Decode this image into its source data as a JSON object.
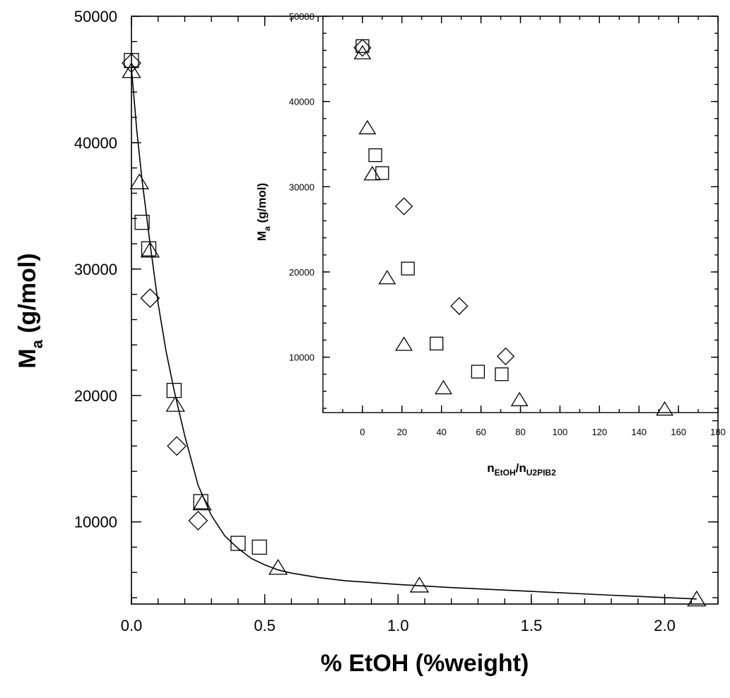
{
  "chart_data": [
    {
      "type": "scatter",
      "title": "",
      "xlabel": "% EtOH (%weight)",
      "ylabel": {
        "main": "M",
        "sub": "a",
        "rest": " (g/mol)"
      },
      "xlim": [
        0,
        2.2
      ],
      "ylim": [
        3500,
        50000
      ],
      "xticks": [
        "0.0",
        "0.5",
        "1.0",
        "1.5",
        "2.0"
      ],
      "xtick_values": [
        0,
        0.5,
        1.0,
        1.5,
        2.0
      ],
      "yticks": [
        "10000",
        "20000",
        "30000",
        "40000",
        "50000"
      ],
      "ytick_values": [
        10000,
        20000,
        30000,
        40000,
        50000
      ],
      "grid": false,
      "legend": "none",
      "series": [
        {
          "marker": "square",
          "points": [
            [
              0.0,
              46500
            ],
            [
              0.04,
              33700
            ],
            [
              0.065,
              31600
            ],
            [
              0.16,
              20400
            ],
            [
              0.26,
              11600
            ],
            [
              0.4,
              8300
            ],
            [
              0.48,
              8000
            ]
          ]
        },
        {
          "marker": "diamond",
          "points": [
            [
              0.0,
              46300
            ],
            [
              0.07,
              27700
            ],
            [
              0.17,
              16000
            ],
            [
              0.25,
              10100
            ]
          ]
        },
        {
          "marker": "triangle",
          "points": [
            [
              0.0,
              45600
            ],
            [
              0.03,
              36800
            ],
            [
              0.07,
              31400
            ],
            [
              0.165,
              19200
            ],
            [
              0.265,
              11400
            ],
            [
              0.55,
              6300
            ],
            [
              1.08,
              4900
            ],
            [
              2.12,
              3800
            ]
          ]
        }
      ],
      "fit_line": [
        [
          0.0,
          45900
        ],
        [
          0.02,
          41000
        ],
        [
          0.04,
          37000
        ],
        [
          0.07,
          32000
        ],
        [
          0.1,
          27300
        ],
        [
          0.13,
          23500
        ],
        [
          0.16,
          20400
        ],
        [
          0.2,
          16800
        ],
        [
          0.25,
          12900
        ],
        [
          0.3,
          10500
        ],
        [
          0.35,
          8900
        ],
        [
          0.4,
          7900
        ],
        [
          0.45,
          7100
        ],
        [
          0.5,
          6600
        ],
        [
          0.55,
          6200
        ],
        [
          0.6,
          5950
        ],
        [
          0.7,
          5600
        ],
        [
          0.8,
          5350
        ],
        [
          1.0,
          5050
        ],
        [
          1.2,
          4800
        ],
        [
          1.5,
          4500
        ],
        [
          1.8,
          4200
        ],
        [
          2.12,
          3900
        ]
      ]
    },
    {
      "type": "scatter",
      "title": "",
      "xlabel": {
        "main": "n",
        "sub1": "EtOH",
        "slash": "/n",
        "sub2": "U2PIB2"
      },
      "ylabel": {
        "main": "M",
        "sub": "a",
        "rest": " (g/mol)"
      },
      "xlim": [
        -20,
        180
      ],
      "ylim": [
        3500,
        50000
      ],
      "xticks": [
        "0",
        "20",
        "40",
        "60",
        "80",
        "100",
        "120",
        "140",
        "160",
        "180"
      ],
      "xtick_values": [
        0,
        20,
        40,
        60,
        80,
        100,
        120,
        140,
        160,
        180
      ],
      "yticks": [
        "10000",
        "20000",
        "30000",
        "40000",
        "50000"
      ],
      "ytick_values": [
        10000,
        20000,
        30000,
        40000,
        50000
      ],
      "grid": false,
      "legend": "none",
      "series": [
        {
          "marker": "square",
          "points": [
            [
              0.0,
              46500
            ],
            [
              6.5,
              33700
            ],
            [
              10.0,
              31600
            ],
            [
              23.0,
              20400
            ],
            [
              37.5,
              11600
            ],
            [
              58.5,
              8300
            ],
            [
              70.5,
              8000
            ]
          ]
        },
        {
          "marker": "diamond",
          "points": [
            [
              0.0,
              46300
            ],
            [
              21.0,
              27700
            ],
            [
              49.0,
              16000
            ],
            [
              72.5,
              10100
            ]
          ]
        },
        {
          "marker": "triangle",
          "points": [
            [
              0.0,
              45600
            ],
            [
              2.5,
              36800
            ],
            [
              5.0,
              31400
            ],
            [
              12.5,
              19200
            ],
            [
              21.0,
              11400
            ],
            [
              41.0,
              6300
            ],
            [
              79.5,
              4900
            ],
            [
              153.0,
              3800
            ]
          ]
        }
      ]
    }
  ]
}
